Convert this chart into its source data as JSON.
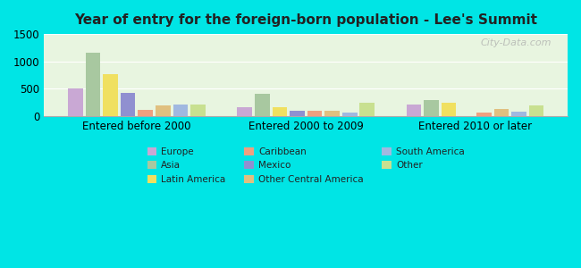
{
  "title": "Year of entry for the foreign-born population - Lee's Summit",
  "groups": [
    "Entered before 2000",
    "Entered 2000 to 2009",
    "Entered 2010 or later"
  ],
  "categories": [
    "Europe",
    "Asia",
    "Latin America",
    "Mexico",
    "Caribbean",
    "Other Central America",
    "South America",
    "Other"
  ],
  "values": {
    "Entered before 2000": [
      500,
      1150,
      760,
      420,
      115,
      195,
      200,
      210
    ],
    "Entered 2000 to 2009": [
      155,
      410,
      155,
      95,
      90,
      85,
      55,
      240
    ],
    "Entered 2010 or later": [
      210,
      290,
      240,
      0,
      55,
      130,
      70,
      195
    ]
  },
  "colors": {
    "Europe": "#c9a8d4",
    "Asia": "#a8c8a0",
    "Latin America": "#f0e060",
    "Mexico": "#9090d0",
    "Caribbean": "#f0a080",
    "Other Central America": "#e0c080",
    "South America": "#a0b8e0",
    "Other": "#c8e090"
  },
  "background_outer": "#00e5e5",
  "background_inner": "#e8f5e0",
  "ylim": [
    0,
    1500
  ],
  "yticks": [
    0,
    500,
    1000,
    1500
  ],
  "watermark": "City-Data.com"
}
